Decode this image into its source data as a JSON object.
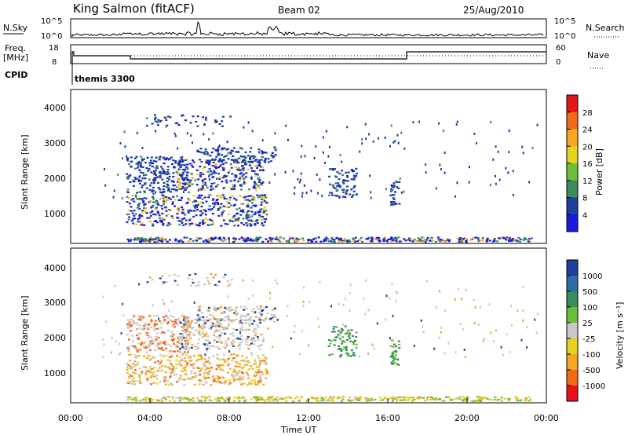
{
  "header": {
    "station": "King Salmon (fitACF)",
    "beam": "Beam 02",
    "date": "25/Aug/2010"
  },
  "strip": {
    "nsky_label": "N.Sky",
    "nsky_ticks": [
      "10^5",
      "10^0"
    ],
    "nsearch_label": "N.Search",
    "nsearch_ticks": [
      "10^5",
      "10^0"
    ],
    "freq_label": "Freq.",
    "freq_unit": "[MHz]",
    "freq_ticks": [
      "18",
      "8"
    ],
    "nave_label": "Nave",
    "nave_ticks": [
      "60",
      "0"
    ],
    "cpid_label": "CPID",
    "cpid_value": "themis 3300"
  },
  "chart_data": [
    {
      "type": "heatmap",
      "name": "power",
      "ylabel": "Slant Range [km]",
      "yticks": [
        "4000",
        "3000",
        "2000",
        "1000"
      ],
      "ylim": [
        200,
        4500
      ],
      "colorbar_label": "Power [dB]",
      "colorbar_ticks": [
        "28",
        "24",
        "20",
        "16",
        "12",
        "8",
        "4"
      ],
      "colorbar_colors": [
        "#e8141c",
        "#f06a1a",
        "#f5a623",
        "#e6d21e",
        "#6dbf3a",
        "#3a8c5a",
        "#1f3f9c",
        "#1a1adc"
      ]
    },
    {
      "type": "heatmap",
      "name": "velocity",
      "ylabel": "Slant Range [km]",
      "yticks": [
        "4000",
        "3000",
        "2000",
        "1000"
      ],
      "ylim": [
        200,
        4500
      ],
      "xlabel": "Time UT",
      "xticks": [
        "00:00",
        "04:00",
        "08:00",
        "12:00",
        "16:00",
        "20:00",
        "00:00"
      ],
      "colorbar_label": "Velocity [m s⁻¹]",
      "colorbar_ticks": [
        "1000",
        "500",
        "100",
        "25",
        "-25",
        "-100",
        "-500",
        "-1000"
      ],
      "colorbar_colors": [
        "#1f3f9c",
        "#2e6da4",
        "#3a8c5a",
        "#6dbf3a",
        "#c8c8c8",
        "#e6d21e",
        "#f5a623",
        "#f06a1a",
        "#e8141c"
      ]
    }
  ]
}
